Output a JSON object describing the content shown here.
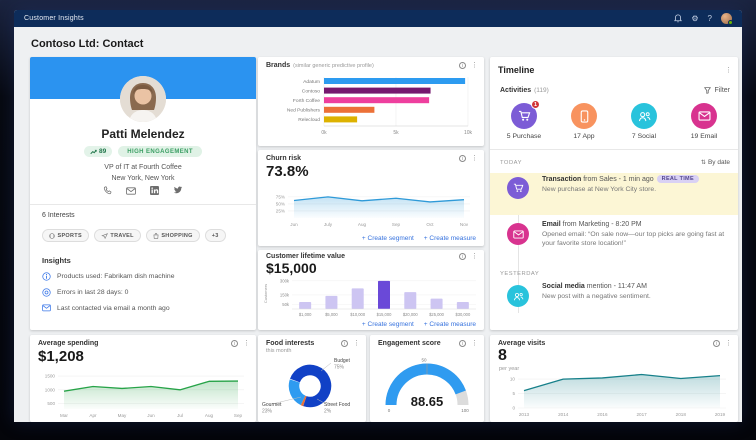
{
  "topbar": {
    "app_title": "Customer Insights"
  },
  "icons": {
    "more": "⋮",
    "gear": "⚙",
    "help": "?",
    "sort": "⇅"
  },
  "page_title": "Contoso Ltd: Contact",
  "accent_colors": {
    "topbar": "#0d2c5a",
    "profile_band": "#2b93f0",
    "link_blue": "#3672de"
  },
  "profile": {
    "name": "Patti Melendez",
    "score": "89",
    "engagement": "HIGH ENGAGEMENT",
    "role": "VP of IT at Fourth Coffee",
    "location": "New York, New York",
    "interests_label": "6 Interests",
    "interests": [
      {
        "label": "SPORTS"
      },
      {
        "label": "TRAVEL"
      },
      {
        "label": "SHOPPING"
      },
      {
        "label": "+3"
      }
    ],
    "insights_title": "Insights",
    "insights": [
      {
        "text": "Products used: Fabrikam dish machine"
      },
      {
        "text": "Errors in last 28 days: 0"
      },
      {
        "text": "Last contacted via email a month ago"
      }
    ]
  },
  "timeline": {
    "title": "Timeline",
    "activities_label": "Activities",
    "activities_count": "(119)",
    "filter_label": "Filter",
    "sort_label": "By date",
    "summary": [
      {
        "label": "5 Purchase",
        "icon": "cart-icon",
        "color": "#7c5cd6",
        "badge": "1"
      },
      {
        "label": "17 App",
        "icon": "mobile-icon",
        "color": "#f8935f",
        "badge": ""
      },
      {
        "label": "7 Social",
        "icon": "people-icon",
        "color": "#29c3dc",
        "badge": ""
      },
      {
        "label": "19 Email",
        "icon": "envelope-icon",
        "color": "#d8338f",
        "badge": ""
      }
    ],
    "groups": [
      {
        "day": "TODAY"
      },
      {
        "day": "YESTERDAY"
      }
    ],
    "entries": [
      {
        "bold": "Transaction",
        "rest": " from Sales - 1 min ago",
        "badge": "REAL TIME",
        "body": "New purchase at New York City store.",
        "color": "#7c5cd6",
        "icon": "cart-icon",
        "highlight": true
      },
      {
        "bold": "Email",
        "rest": " from Marketing - 8:20 PM",
        "badge": "",
        "body": "Opened email: “On sale now—our top picks are going fast at your favorite store location!”",
        "color": "#d8338f",
        "icon": "envelope-icon",
        "highlight": false
      },
      {
        "bold": "Social media",
        "rest": " mention - 11:47 AM",
        "badge": "",
        "body": "New post with a negative sentiment.",
        "color": "#29c3dc",
        "icon": "people-icon",
        "highlight": false
      }
    ]
  },
  "chart_data": [
    {
      "id": "brands",
      "type": "bar",
      "orientation": "horizontal",
      "title": "Brands",
      "subtitle": "(similar generic predictive profile)",
      "categories": [
        "Adatum",
        "Contoso",
        "Forth Coffee",
        "Ned Publishers",
        "Relecloud"
      ],
      "values": [
        9800,
        7400,
        7300,
        3500,
        2300
      ],
      "colors": [
        "#2d9bf0",
        "#76186f",
        "#ee3f9e",
        "#ec7138",
        "#ddb200"
      ],
      "xticks": [
        "0k",
        "5k",
        "10k"
      ],
      "xlim": [
        0,
        10000
      ]
    },
    {
      "id": "churn",
      "type": "area",
      "title": "Churn risk",
      "big_value": "73.8%",
      "x": [
        "Jun",
        "July",
        "Aug",
        "Sep",
        "Oct",
        "Nov"
      ],
      "values": [
        62,
        75,
        61,
        70,
        57,
        65
      ],
      "yticks": [
        75,
        50,
        25
      ],
      "ytick_labels": [
        "75%",
        "50%",
        "25%"
      ],
      "ylim": [
        0,
        110
      ],
      "color": "#2f9ad8",
      "links": [
        "+ Create segment",
        "+ Create measure"
      ]
    },
    {
      "id": "clv",
      "type": "bar",
      "orientation": "vertical",
      "title": "Customer lifetime value",
      "big_value": "$15,000",
      "categories": [
        "$1,000",
        "$5,000",
        "$10,000",
        "$15,000",
        "$20,000",
        "$25,000",
        "$30,000"
      ],
      "values": [
        75,
        140,
        220,
        300,
        180,
        110,
        75
      ],
      "value_unit": "k customers",
      "highlight_index": 3,
      "bar_color": "#cdc5f2",
      "highlight_color": "#6a49d8",
      "ylabel": "Customers",
      "yticks": [
        300,
        150,
        50
      ],
      "ytick_labels": [
        "300k",
        "150k",
        "50k"
      ],
      "ylim": [
        0,
        330
      ],
      "links": [
        "+ Create segment",
        "+ Create measure"
      ]
    },
    {
      "id": "avg-spending",
      "type": "area",
      "title": "Average spending",
      "big_value": "$1,208",
      "x": [
        "Mar",
        "Apr",
        "May",
        "Jun",
        "Jul",
        "Aug",
        "Sep"
      ],
      "values": [
        950,
        1120,
        1050,
        1120,
        1000,
        1310,
        1320
      ],
      "yticks": [
        1500,
        1000,
        500
      ],
      "ytick_labels": [
        "1500",
        "1000",
        "500"
      ],
      "ylim": [
        300,
        1650
      ],
      "color": "#27a348"
    },
    {
      "id": "food-interests",
      "type": "pie",
      "title": "Food interests",
      "subtitle": "this month",
      "slices": [
        {
          "label": "Budget",
          "pct": 75,
          "pct_label": "75%",
          "color": "#1141c6"
        },
        {
          "label": "Street Food",
          "pct": 2,
          "pct_label": "2%",
          "color": "#e8713a"
        },
        {
          "label": "Gourmet",
          "pct": 23,
          "pct_label": "23%",
          "color": "#2f9bf0"
        }
      ],
      "start_angle": 290
    },
    {
      "id": "engagement-score",
      "type": "gauge",
      "title": "Engagement score",
      "value": 88.65,
      "display_value": "88.65",
      "min": 0,
      "mid": 50,
      "max": 100,
      "color": "#2f9bf0",
      "track": "#dcdcdc"
    },
    {
      "id": "avg-visits",
      "type": "area",
      "title": "Average visits",
      "big_value": "8",
      "subtitle": "per year",
      "x": [
        "2013",
        "2014",
        "2016",
        "2017",
        "2018",
        "2019"
      ],
      "values": [
        6,
        10,
        10.4,
        11.6,
        10.2,
        11.2
      ],
      "yticks": [
        10,
        5,
        0
      ],
      "ytick_labels": [
        "10",
        "5",
        "0"
      ],
      "ylim": [
        0,
        13.5
      ],
      "color": "#17808a"
    }
  ]
}
